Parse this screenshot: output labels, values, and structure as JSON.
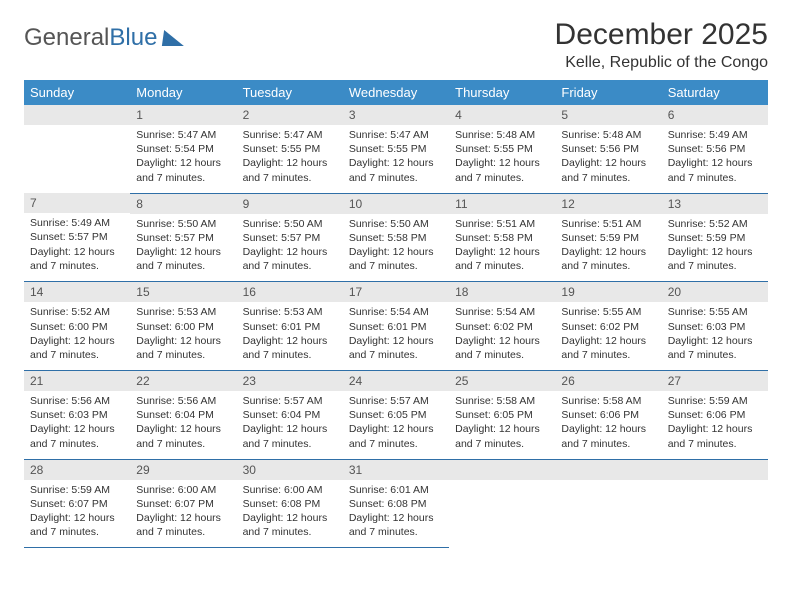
{
  "logo": {
    "text1": "General",
    "text2": "Blue"
  },
  "title": {
    "month": "December 2025",
    "location": "Kelle, Republic of the Congo"
  },
  "colors": {
    "header_bg": "#3b8bc6",
    "header_text": "#ffffff",
    "daynum_bg": "#e8e8e8",
    "border": "#2f6fa7",
    "body_text": "#333333"
  },
  "dayNames": [
    "Sunday",
    "Monday",
    "Tuesday",
    "Wednesday",
    "Thursday",
    "Friday",
    "Saturday"
  ],
  "weeks": [
    [
      {
        "n": "",
        "sr": "",
        "ss": "",
        "dl": ""
      },
      {
        "n": "1",
        "sr": "5:47 AM",
        "ss": "5:54 PM",
        "dl": "12 hours and 7 minutes."
      },
      {
        "n": "2",
        "sr": "5:47 AM",
        "ss": "5:55 PM",
        "dl": "12 hours and 7 minutes."
      },
      {
        "n": "3",
        "sr": "5:47 AM",
        "ss": "5:55 PM",
        "dl": "12 hours and 7 minutes."
      },
      {
        "n": "4",
        "sr": "5:48 AM",
        "ss": "5:55 PM",
        "dl": "12 hours and 7 minutes."
      },
      {
        "n": "5",
        "sr": "5:48 AM",
        "ss": "5:56 PM",
        "dl": "12 hours and 7 minutes."
      },
      {
        "n": "6",
        "sr": "5:49 AM",
        "ss": "5:56 PM",
        "dl": "12 hours and 7 minutes."
      }
    ],
    [
      {
        "n": "7",
        "sr": "5:49 AM",
        "ss": "5:57 PM",
        "dl": "12 hours and 7 minutes."
      },
      {
        "n": "8",
        "sr": "5:50 AM",
        "ss": "5:57 PM",
        "dl": "12 hours and 7 minutes."
      },
      {
        "n": "9",
        "sr": "5:50 AM",
        "ss": "5:57 PM",
        "dl": "12 hours and 7 minutes."
      },
      {
        "n": "10",
        "sr": "5:50 AM",
        "ss": "5:58 PM",
        "dl": "12 hours and 7 minutes."
      },
      {
        "n": "11",
        "sr": "5:51 AM",
        "ss": "5:58 PM",
        "dl": "12 hours and 7 minutes."
      },
      {
        "n": "12",
        "sr": "5:51 AM",
        "ss": "5:59 PM",
        "dl": "12 hours and 7 minutes."
      },
      {
        "n": "13",
        "sr": "5:52 AM",
        "ss": "5:59 PM",
        "dl": "12 hours and 7 minutes."
      }
    ],
    [
      {
        "n": "14",
        "sr": "5:52 AM",
        "ss": "6:00 PM",
        "dl": "12 hours and 7 minutes."
      },
      {
        "n": "15",
        "sr": "5:53 AM",
        "ss": "6:00 PM",
        "dl": "12 hours and 7 minutes."
      },
      {
        "n": "16",
        "sr": "5:53 AM",
        "ss": "6:01 PM",
        "dl": "12 hours and 7 minutes."
      },
      {
        "n": "17",
        "sr": "5:54 AM",
        "ss": "6:01 PM",
        "dl": "12 hours and 7 minutes."
      },
      {
        "n": "18",
        "sr": "5:54 AM",
        "ss": "6:02 PM",
        "dl": "12 hours and 7 minutes."
      },
      {
        "n": "19",
        "sr": "5:55 AM",
        "ss": "6:02 PM",
        "dl": "12 hours and 7 minutes."
      },
      {
        "n": "20",
        "sr": "5:55 AM",
        "ss": "6:03 PM",
        "dl": "12 hours and 7 minutes."
      }
    ],
    [
      {
        "n": "21",
        "sr": "5:56 AM",
        "ss": "6:03 PM",
        "dl": "12 hours and 7 minutes."
      },
      {
        "n": "22",
        "sr": "5:56 AM",
        "ss": "6:04 PM",
        "dl": "12 hours and 7 minutes."
      },
      {
        "n": "23",
        "sr": "5:57 AM",
        "ss": "6:04 PM",
        "dl": "12 hours and 7 minutes."
      },
      {
        "n": "24",
        "sr": "5:57 AM",
        "ss": "6:05 PM",
        "dl": "12 hours and 7 minutes."
      },
      {
        "n": "25",
        "sr": "5:58 AM",
        "ss": "6:05 PM",
        "dl": "12 hours and 7 minutes."
      },
      {
        "n": "26",
        "sr": "5:58 AM",
        "ss": "6:06 PM",
        "dl": "12 hours and 7 minutes."
      },
      {
        "n": "27",
        "sr": "5:59 AM",
        "ss": "6:06 PM",
        "dl": "12 hours and 7 minutes."
      }
    ],
    [
      {
        "n": "28",
        "sr": "5:59 AM",
        "ss": "6:07 PM",
        "dl": "12 hours and 7 minutes."
      },
      {
        "n": "29",
        "sr": "6:00 AM",
        "ss": "6:07 PM",
        "dl": "12 hours and 7 minutes."
      },
      {
        "n": "30",
        "sr": "6:00 AM",
        "ss": "6:08 PM",
        "dl": "12 hours and 7 minutes."
      },
      {
        "n": "31",
        "sr": "6:01 AM",
        "ss": "6:08 PM",
        "dl": "12 hours and 7 minutes."
      },
      {
        "n": "",
        "sr": "",
        "ss": "",
        "dl": ""
      },
      {
        "n": "",
        "sr": "",
        "ss": "",
        "dl": ""
      },
      {
        "n": "",
        "sr": "",
        "ss": "",
        "dl": ""
      }
    ]
  ],
  "labels": {
    "sunrise": "Sunrise: ",
    "sunset": "Sunset: ",
    "daylight": "Daylight: "
  }
}
